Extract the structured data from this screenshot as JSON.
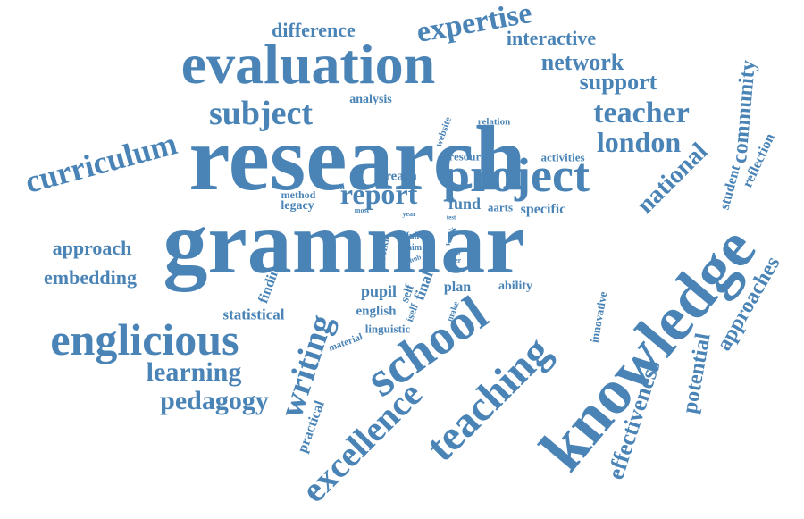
{
  "accent_color": "#4a84b6",
  "words": [
    {
      "id": "research",
      "text": "research"
    },
    {
      "id": "grammar",
      "text": "grammar"
    },
    {
      "id": "evaluation",
      "text": "evaluation"
    },
    {
      "id": "knowledge",
      "text": "knowledge"
    },
    {
      "id": "project",
      "text": "project"
    },
    {
      "id": "school",
      "text": "school"
    },
    {
      "id": "teaching",
      "text": "teaching"
    },
    {
      "id": "englicious",
      "text": "englicious"
    },
    {
      "id": "excellence",
      "text": "excellence"
    },
    {
      "id": "writing",
      "text": "writing"
    },
    {
      "id": "curriculum",
      "text": "curriculum"
    },
    {
      "id": "subject",
      "text": "subject"
    },
    {
      "id": "expertise",
      "text": "expertise"
    },
    {
      "id": "teacher",
      "text": "teacher"
    },
    {
      "id": "london",
      "text": "london"
    },
    {
      "id": "national",
      "text": "national"
    },
    {
      "id": "community",
      "text": "community"
    },
    {
      "id": "learning",
      "text": "learning"
    },
    {
      "id": "pedagogy",
      "text": "pedagogy"
    },
    {
      "id": "approach",
      "text": "approach"
    },
    {
      "id": "embedding",
      "text": "embedding"
    },
    {
      "id": "report",
      "text": "report"
    },
    {
      "id": "support",
      "text": "support"
    },
    {
      "id": "network",
      "text": "network"
    },
    {
      "id": "interactive",
      "text": "interactive"
    },
    {
      "id": "difference",
      "text": "difference"
    },
    {
      "id": "effectiveness",
      "text": "effectiveness"
    },
    {
      "id": "potential",
      "text": "potential"
    },
    {
      "id": "approaches",
      "text": "approaches"
    },
    {
      "id": "student",
      "text": "student"
    },
    {
      "id": "reflection",
      "text": "reflection"
    },
    {
      "id": "statistical",
      "text": "statistical"
    },
    {
      "id": "practical",
      "text": "practical"
    },
    {
      "id": "finding",
      "text": "finding"
    },
    {
      "id": "pupil",
      "text": "pupil"
    },
    {
      "id": "english",
      "text": "english"
    },
    {
      "id": "linguistic",
      "text": "linguistic"
    },
    {
      "id": "material",
      "text": "material"
    },
    {
      "id": "final",
      "text": "final"
    },
    {
      "id": "plan",
      "text": "plan"
    },
    {
      "id": "ability",
      "text": "ability"
    },
    {
      "id": "specific",
      "text": "specific"
    },
    {
      "id": "fund",
      "text": "fund"
    },
    {
      "id": "aarts",
      "text": "aarts"
    },
    {
      "id": "analysis",
      "text": "analysis"
    },
    {
      "id": "relation",
      "text": "relation"
    },
    {
      "id": "resource",
      "text": "resource"
    },
    {
      "id": "activities",
      "text": "activities"
    },
    {
      "id": "reach",
      "text": "reach"
    },
    {
      "id": "method",
      "text": "method"
    },
    {
      "id": "legacy",
      "text": "legacy"
    },
    {
      "id": "lesson",
      "text": "lesson"
    },
    {
      "id": "most",
      "text": "most"
    },
    {
      "id": "year",
      "text": "year"
    },
    {
      "id": "website",
      "text": "website"
    },
    {
      "id": "toolkit",
      "text": "toolkit"
    },
    {
      "id": "full",
      "text": "full"
    },
    {
      "id": "aim",
      "text": "aim"
    },
    {
      "id": "hub",
      "text": "hub"
    },
    {
      "id": "work",
      "text": "work"
    },
    {
      "id": "trial",
      "text": "trial"
    },
    {
      "id": "offer",
      "text": "offer"
    },
    {
      "id": "test",
      "text": "test"
    },
    {
      "id": "self",
      "text": "self"
    },
    {
      "id": "iself",
      "text": "iself"
    },
    {
      "id": "make",
      "text": "make"
    },
    {
      "id": "innovative",
      "text": "innovative"
    }
  ]
}
